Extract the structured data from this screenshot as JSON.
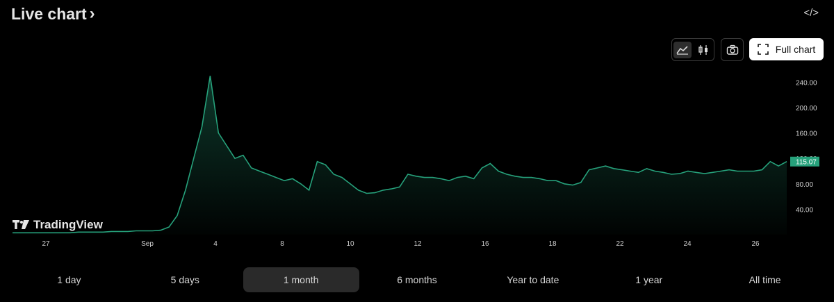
{
  "header": {
    "title": "Live chart",
    "title_chevron": "›",
    "embed_icon": "</>"
  },
  "toolbar": {
    "chart_type_options": [
      {
        "name": "area-chart",
        "icon": "area-chart-icon",
        "active": true
      },
      {
        "name": "candles",
        "icon": "candlestick-icon",
        "active": false
      }
    ],
    "screenshot_icon": "camera-icon",
    "full_chart_label": "Full chart",
    "full_chart_icon": "fullscreen-icon"
  },
  "watermark": {
    "text": "TradingView"
  },
  "chart_data": {
    "type": "area",
    "line_color": "#26a17b",
    "x_ticks": [
      "27",
      "Sep",
      "4",
      "8",
      "10",
      "12",
      "16",
      "18",
      "22",
      "24",
      "26"
    ],
    "y_ticks": [
      "240.00",
      "200.00",
      "160.00",
      "120.00",
      "80.00",
      "40.00"
    ],
    "ylim": [
      0,
      260
    ],
    "last_price": "115.07",
    "values": [
      3,
      3,
      3,
      3,
      3,
      3,
      3,
      3,
      4,
      4,
      4,
      4,
      5,
      5,
      5,
      6,
      6,
      6,
      7,
      12,
      30,
      70,
      120,
      170,
      250,
      160,
      140,
      120,
      125,
      105,
      100,
      95,
      90,
      85,
      88,
      80,
      70,
      115,
      110,
      95,
      90,
      80,
      70,
      65,
      66,
      70,
      72,
      75,
      95,
      92,
      90,
      90,
      88,
      85,
      90,
      92,
      88,
      105,
      112,
      100,
      95,
      92,
      90,
      90,
      88,
      85,
      85,
      80,
      78,
      82,
      102,
      105,
      108,
      104,
      102,
      100,
      98,
      104,
      100,
      98,
      95,
      96,
      100,
      98,
      96,
      98,
      100,
      102,
      100,
      100,
      100,
      102,
      115,
      108,
      115
    ]
  },
  "ranges": {
    "items": [
      {
        "label": "1 day",
        "active": false
      },
      {
        "label": "5 days",
        "active": false
      },
      {
        "label": "1 month",
        "active": true
      },
      {
        "label": "6 months",
        "active": false
      },
      {
        "label": "Year to date",
        "active": false
      },
      {
        "label": "1 year",
        "active": false
      },
      {
        "label": "All time",
        "active": false
      }
    ]
  }
}
